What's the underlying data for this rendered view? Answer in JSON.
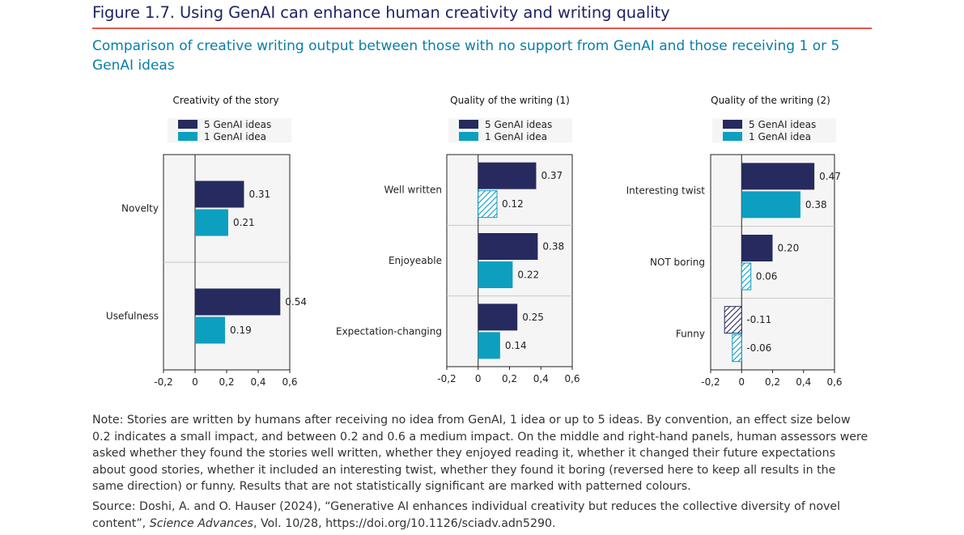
{
  "figure": {
    "title": "Figure 1.7. Using GenAI can enhance human creativity and writing quality",
    "subtitle": "Comparison of creative writing output between those with no support from GenAI and those receiving 1 or 5 GenAI ideas",
    "note": "Note: Stories are written by humans after receiving no idea from GenAI, 1 idea or up to 5 ideas. By convention, an effect size below 0.2 indicates a small impact, and between 0.2 and 0.6 a medium impact. On the middle and right-hand panels, human assessors were asked whether they found the stories well written, whether they enjoyed reading it, whether it changed their future expectations about good stories, whether it included an interesting twist, whether they found it boring (reversed here to keep all results in the same direction) or funny. Results that are not statistically significant are marked with patterned colours.",
    "source_prefix": "Source: Doshi, A. and O. Hauser (2024), “Generative AI enhances individual creativity but reduces the collective diversity of novel content”, ",
    "source_journal": "Science Advances",
    "source_suffix": ", Vol. 10/28, https://doi.org/10.1126/sciadv.adn5290."
  },
  "colors": {
    "five_ideas": "#262a5e",
    "one_idea": "#0d9fc0",
    "title": "#1f2560",
    "subtitle": "#0a7ea8",
    "rule": "#e2574c",
    "plot_bg": "#f5f5f5"
  },
  "chart_data": [
    {
      "type": "bar",
      "orientation": "horizontal",
      "title": "Creativity of the story",
      "categories": [
        "Novelty",
        "Usefulness"
      ],
      "series": [
        {
          "name": "5 GenAI ideas",
          "values": [
            0.31,
            0.54
          ],
          "significant": [
            true,
            true
          ]
        },
        {
          "name": "1 GenAI idea",
          "values": [
            0.21,
            0.19
          ],
          "significant": [
            true,
            true
          ]
        }
      ],
      "value_labels": [
        [
          "0.31",
          "0.54"
        ],
        [
          "0.21",
          "0.19"
        ]
      ],
      "xlim": [
        -0.2,
        0.6
      ],
      "ticks": [
        -0.2,
        0,
        0.2,
        0.4,
        0.6
      ],
      "tick_labels": [
        "-0,2",
        "0",
        "0,2",
        "0,4",
        "0,6"
      ],
      "legend": "top"
    },
    {
      "type": "bar",
      "orientation": "horizontal",
      "title": "Quality of the writing (1)",
      "categories": [
        "Well written",
        "Enjoyeable",
        "Expectation-changing"
      ],
      "series": [
        {
          "name": "5 GenAI ideas",
          "values": [
            0.37,
            0.38,
            0.25
          ],
          "significant": [
            true,
            true,
            true
          ]
        },
        {
          "name": "1 GenAI idea",
          "values": [
            0.12,
            0.22,
            0.14
          ],
          "significant": [
            false,
            true,
            true
          ]
        }
      ],
      "value_labels": [
        [
          "0.37",
          "0.38",
          "0.25"
        ],
        [
          "0.12",
          "0.22",
          "0.14"
        ]
      ],
      "xlim": [
        -0.2,
        0.6
      ],
      "ticks": [
        -0.2,
        0,
        0.2,
        0.4,
        0.6
      ],
      "tick_labels": [
        "-0,2",
        "0",
        "0,2",
        "0,4",
        "0,6"
      ],
      "legend": "top"
    },
    {
      "type": "bar",
      "orientation": "horizontal",
      "title": "Quality of the writing (2)",
      "categories": [
        "Interesting twist",
        "NOT boring",
        "Funny"
      ],
      "series": [
        {
          "name": "5 GenAI ideas",
          "values": [
            0.47,
            0.2,
            -0.11
          ],
          "significant": [
            true,
            true,
            false
          ]
        },
        {
          "name": "1 GenAI idea",
          "values": [
            0.38,
            0.06,
            -0.06
          ],
          "significant": [
            true,
            false,
            false
          ]
        }
      ],
      "value_labels": [
        [
          "0.47",
          "0.20",
          "-0.11"
        ],
        [
          "0.38",
          "0.06",
          "-0.06"
        ]
      ],
      "xlim": [
        -0.2,
        0.6
      ],
      "ticks": [
        -0.2,
        0,
        0.2,
        0.4,
        0.6
      ],
      "tick_labels": [
        "-0,2",
        "0",
        "0,2",
        "0,4",
        "0,6"
      ],
      "legend": "top"
    }
  ]
}
